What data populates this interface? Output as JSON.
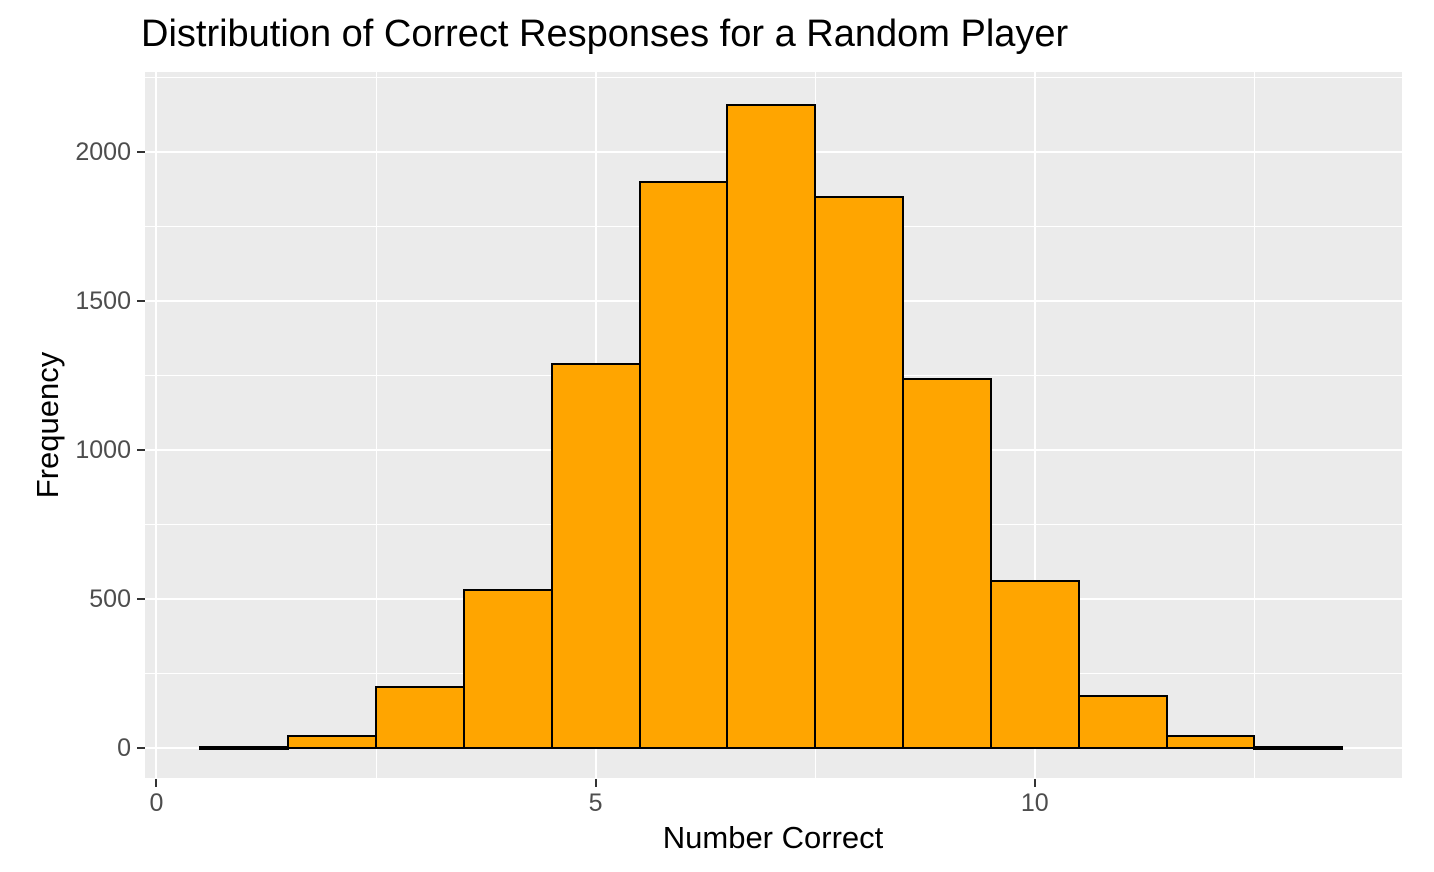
{
  "chart_data": {
    "type": "bar",
    "subtype": "histogram",
    "title": "Distribution of Correct Responses for a Random Player",
    "xlabel": "Number Correct",
    "ylabel": "Frequency",
    "bin_centers": [
      1,
      2,
      3,
      4,
      5,
      6,
      7,
      8,
      9,
      10,
      11,
      12,
      13
    ],
    "bin_width": 1,
    "values": [
      5,
      40,
      205,
      530,
      1290,
      1900,
      2160,
      1850,
      1240,
      560,
      175,
      40,
      5
    ],
    "xlim": [
      -0.13,
      14.18
    ],
    "ylim": [
      -100,
      2270
    ],
    "x_ticks": {
      "major": [
        0,
        5,
        10
      ],
      "labels": [
        "0",
        "5",
        "10"
      ],
      "minor": [
        2.5,
        7.5,
        12.5
      ]
    },
    "y_ticks": {
      "major": [
        0,
        500,
        1000,
        1500,
        2000
      ],
      "labels": [
        "0",
        "500",
        "1000",
        "1500",
        "2000"
      ],
      "minor": [
        250,
        750,
        1250,
        1750,
        2250
      ]
    },
    "grid": "major-and-minor-white-on-gray",
    "legend": "none",
    "colors": {
      "bar_fill": "#FFA500",
      "bar_stroke": "#000000",
      "panel_background": "#EBEBEB",
      "gridline": "#FFFFFF",
      "tick_label": "#4D4D4D",
      "tick_mark": "#333333",
      "text": "#000000",
      "figure_background": "#FFFFFF"
    }
  }
}
